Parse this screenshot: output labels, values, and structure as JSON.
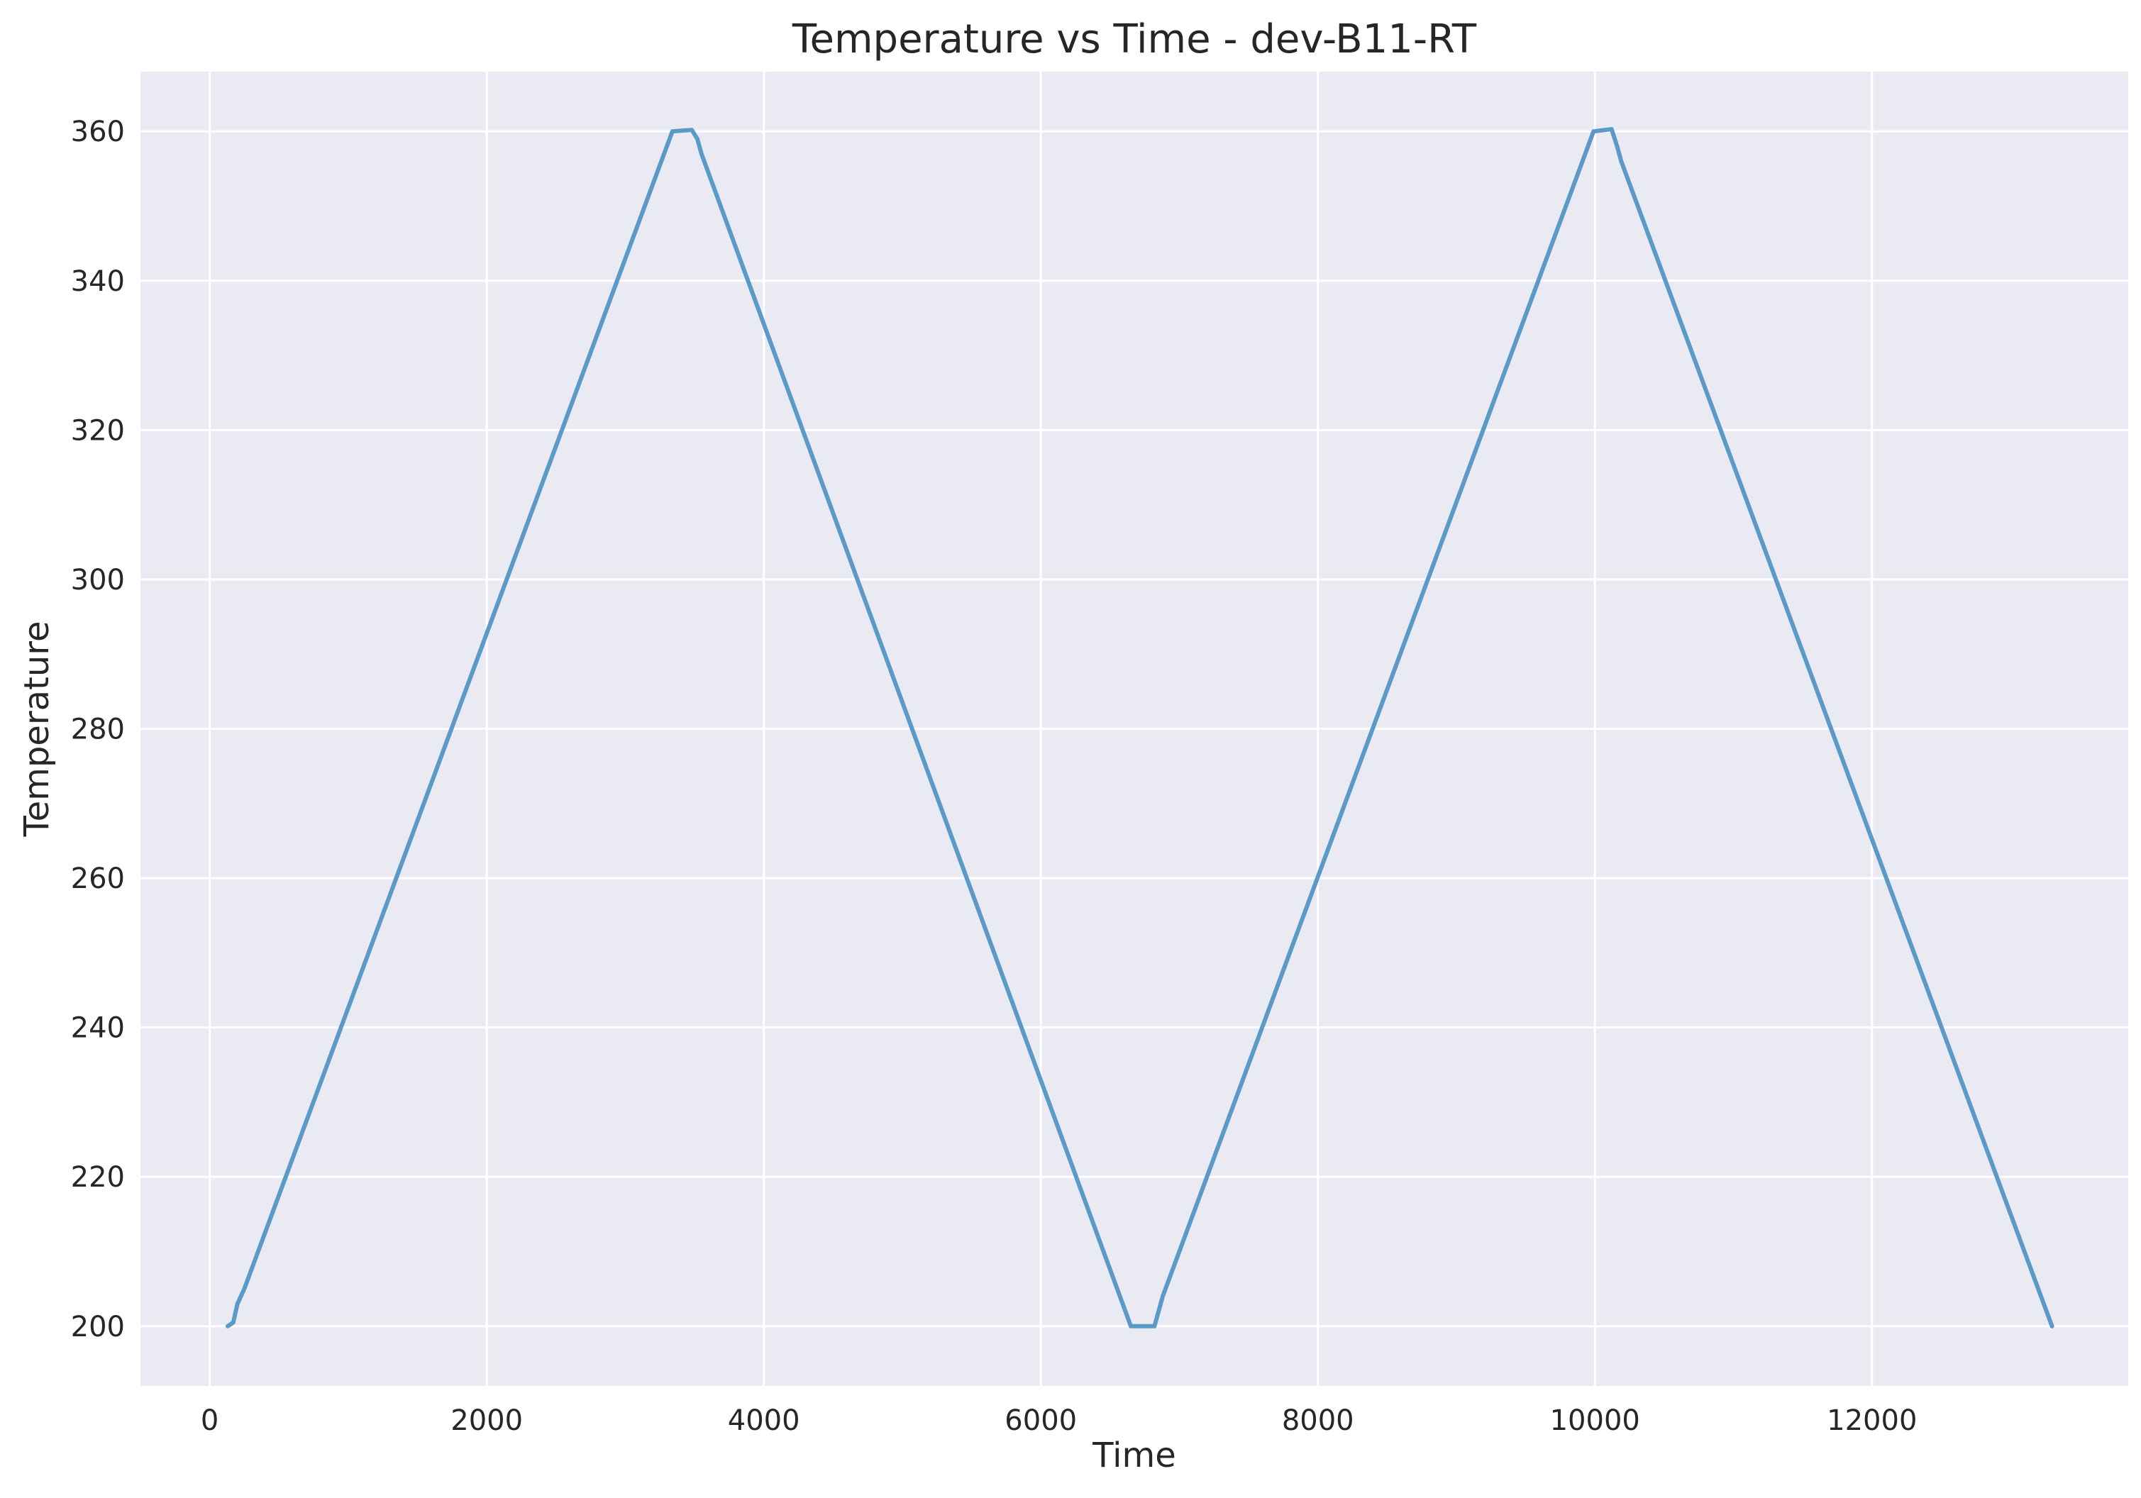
{
  "chart_data": {
    "type": "line",
    "title": "Temperature vs Time - dev-B11-RT",
    "xlabel": "Time",
    "ylabel": "Temperature",
    "xlim": [
      -500,
      13850
    ],
    "ylim": [
      192,
      368
    ],
    "xticks": [
      0,
      2000,
      4000,
      6000,
      8000,
      10000,
      12000
    ],
    "yticks": [
      200,
      220,
      240,
      260,
      280,
      300,
      320,
      340,
      360
    ],
    "grid": true,
    "plot_background": "#EAEAF2",
    "grid_color": "#FFFFFF",
    "series": [
      {
        "color": "#5B9AC8",
        "x": [
          130,
          170,
          200,
          250,
          3340,
          3480,
          3520,
          3550,
          6650,
          6820,
          6850,
          6880,
          9990,
          10120,
          10160,
          10190,
          13300
        ],
        "y": [
          200,
          200.5,
          203,
          205,
          360,
          360.2,
          359,
          357,
          200,
          200,
          202,
          204,
          360,
          360.3,
          358,
          356,
          200
        ]
      }
    ]
  }
}
